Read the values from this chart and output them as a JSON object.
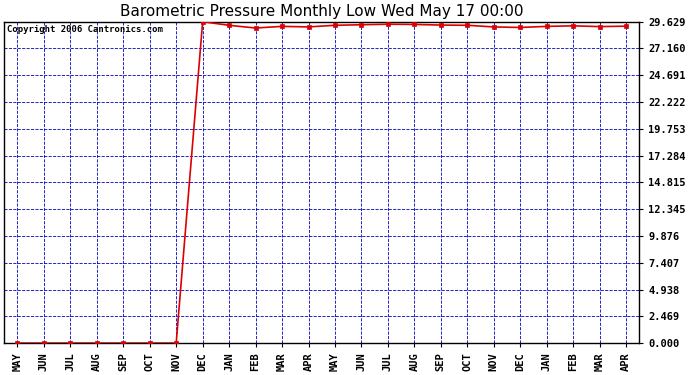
{
  "title": "Barometric Pressure Monthly Low Wed May 17 00:00",
  "copyright_text": "Copyright 2006 Cantronics.com",
  "x_labels": [
    "MAY",
    "JUN",
    "JUL",
    "AUG",
    "SEP",
    "OCT",
    "NOV",
    "DEC",
    "JAN",
    "FEB",
    "MAR",
    "APR",
    "MAY",
    "JUN",
    "JUL",
    "AUG",
    "SEP",
    "OCT",
    "NOV",
    "DEC",
    "JAN",
    "FEB",
    "MAR",
    "APR"
  ],
  "y_values": [
    0.0,
    0.0,
    0.0,
    0.0,
    0.0,
    0.0,
    0.0,
    29.629,
    29.3,
    29.05,
    29.2,
    29.15,
    29.3,
    29.35,
    29.4,
    29.38,
    29.32,
    29.3,
    29.15,
    29.1,
    29.2,
    29.25,
    29.18,
    29.22
  ],
  "yticks": [
    0.0,
    2.469,
    4.938,
    7.407,
    9.876,
    12.345,
    14.815,
    17.284,
    19.753,
    22.222,
    24.691,
    27.16,
    29.629
  ],
  "ylim": [
    0.0,
    29.629
  ],
  "line_color": "#dd0000",
  "marker": "s",
  "marker_size": 2.5,
  "grid_color": "#0000bb",
  "grid_linestyle": "--",
  "grid_linewidth": 0.6,
  "background_color": "#ffffff",
  "plot_bg_color": "#ffffff",
  "title_fontsize": 11,
  "tick_fontsize": 7.5,
  "copyright_fontsize": 6.5,
  "border_color": "#000000"
}
